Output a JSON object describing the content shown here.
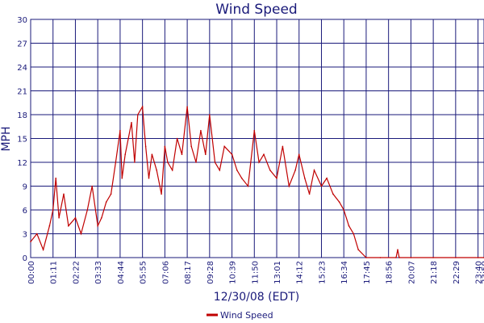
{
  "chart_data": {
    "type": "line",
    "title": "Wind Speed",
    "xlabel": "12/30/08 (EDT)",
    "ylabel": "MPH",
    "ylim": [
      0,
      30
    ],
    "yticks": [
      "0",
      "3",
      "6",
      "9",
      "12",
      "15",
      "18",
      "21",
      "24",
      "27",
      "30"
    ],
    "xticks": [
      "00:00",
      "01:11",
      "02:22",
      "03:33",
      "04:44",
      "05:55",
      "07:06",
      "08:17",
      "09:28",
      "10:39",
      "11:50",
      "13:01",
      "14:12",
      "15:23",
      "16:34",
      "17:45",
      "18:56",
      "20:07",
      "21:18",
      "22:29",
      "23:40",
      "23:59"
    ],
    "grid": true,
    "legend_position": "bottom-center",
    "series": [
      {
        "name": "Wind Speed",
        "color": "#c00000",
        "x": [
          "00:00",
          "00:20",
          "00:40",
          "01:00",
          "01:11",
          "01:20",
          "01:30",
          "01:45",
          "02:00",
          "02:22",
          "02:40",
          "03:00",
          "03:15",
          "03:33",
          "03:45",
          "04:00",
          "04:15",
          "04:30",
          "04:44",
          "04:50",
          "05:00",
          "05:10",
          "05:20",
          "05:30",
          "05:40",
          "05:55",
          "06:05",
          "06:15",
          "06:25",
          "06:40",
          "06:55",
          "07:06",
          "07:15",
          "07:30",
          "07:45",
          "08:00",
          "08:17",
          "08:30",
          "08:45",
          "09:00",
          "09:15",
          "09:28",
          "09:45",
          "10:00",
          "10:15",
          "10:39",
          "10:55",
          "11:10",
          "11:30",
          "11:50",
          "12:05",
          "12:20",
          "12:40",
          "13:01",
          "13:20",
          "13:40",
          "14:00",
          "14:12",
          "14:30",
          "14:45",
          "15:00",
          "15:23",
          "15:40",
          "16:00",
          "16:20",
          "16:34",
          "16:50",
          "17:05",
          "17:20",
          "17:45",
          "18:30",
          "19:20",
          "19:25",
          "19:30",
          "20:07",
          "21:18",
          "22:29",
          "23:40",
          "23:59"
        ],
        "y": [
          2,
          3,
          1,
          4,
          6,
          10,
          5,
          8,
          4,
          5,
          3,
          6,
          9,
          4,
          5,
          7,
          8,
          12,
          16,
          10,
          13,
          15,
          17,
          12,
          18,
          19,
          14,
          10,
          13,
          11,
          8,
          14,
          12,
          11,
          15,
          13,
          19,
          14,
          12,
          16,
          13,
          18,
          12,
          11,
          14,
          13,
          11,
          10,
          9,
          16,
          12,
          13,
          11,
          10,
          14,
          9,
          11,
          13,
          10,
          8,
          11,
          9,
          10,
          8,
          7,
          6,
          4,
          3,
          1,
          0,
          0,
          0,
          1,
          0,
          0,
          0,
          0,
          0,
          0
        ]
      }
    ]
  }
}
